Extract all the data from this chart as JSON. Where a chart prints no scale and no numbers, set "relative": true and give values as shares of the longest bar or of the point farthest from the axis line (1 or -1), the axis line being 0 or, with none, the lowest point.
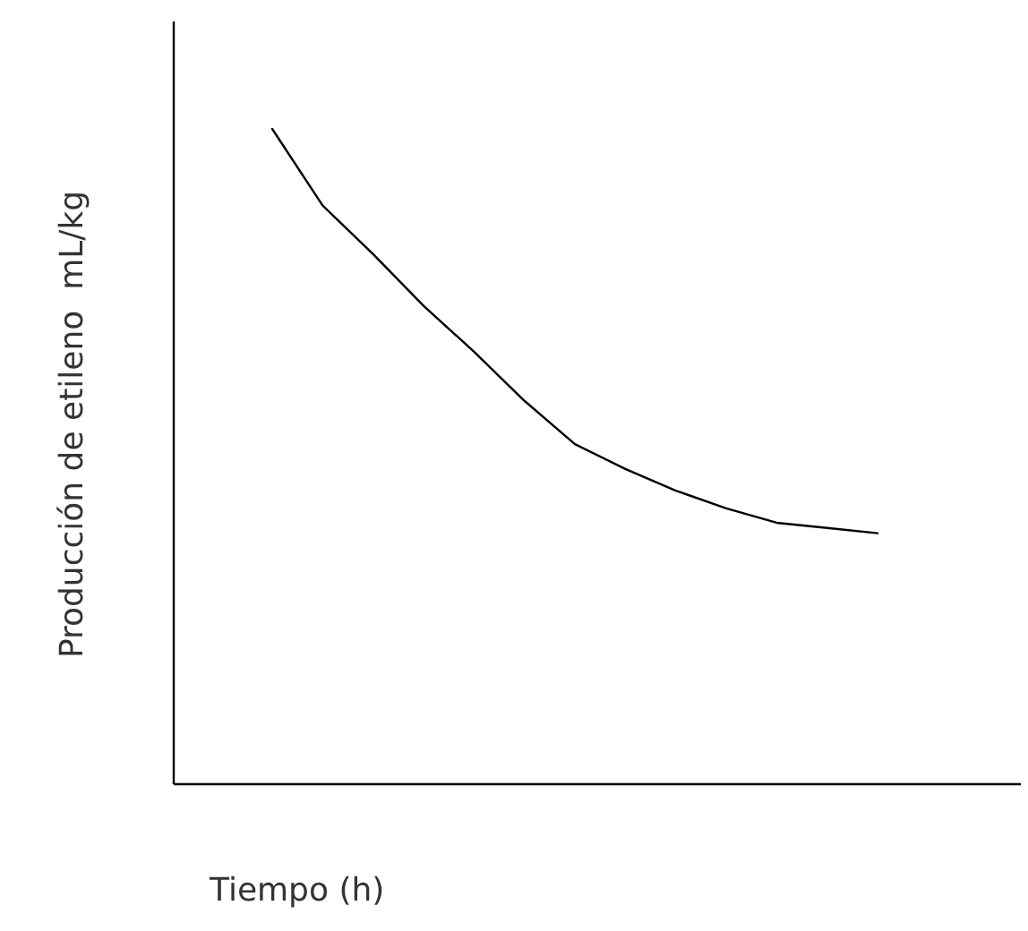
{
  "chart_data": {
    "type": "line",
    "relative": true,
    "xlabel": "Tiempo (h)",
    "ylabel": "Producción de etileno  mL/kg",
    "categories": [
      null,
      null,
      null,
      null,
      null,
      null,
      null,
      null,
      null,
      null,
      null,
      null,
      null
    ],
    "series": [
      {
        "color": "#000000",
        "values": [
          1,
          0.883,
          0.809,
          0.73,
          0.66,
          0.585,
          0.519,
          0.481,
          0.448,
          0.421,
          0.399,
          0.391,
          0.383
        ]
      }
    ]
  }
}
